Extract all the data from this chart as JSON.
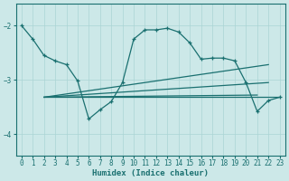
{
  "bg_color": "#cce8e8",
  "grid_color": "#aad4d4",
  "line_color": "#1a7070",
  "xlabel": "Humidex (Indice chaleur)",
  "xlim": [
    -0.5,
    23.5
  ],
  "ylim": [
    -4.4,
    -1.6
  ],
  "yticks": [
    -4,
    -3,
    -2
  ],
  "xticks": [
    0,
    1,
    2,
    3,
    4,
    5,
    6,
    7,
    8,
    9,
    10,
    11,
    12,
    13,
    14,
    15,
    16,
    17,
    18,
    19,
    20,
    21,
    22,
    23
  ],
  "main_x": [
    0,
    1,
    2,
    3,
    4,
    5,
    6,
    7,
    8,
    9,
    10,
    11,
    12,
    13,
    14,
    15,
    16,
    17,
    18,
    19,
    20,
    21,
    22,
    23
  ],
  "main_y": [
    -2.0,
    -2.25,
    -2.55,
    -2.65,
    -2.72,
    -3.02,
    -3.72,
    -3.55,
    -3.4,
    -3.05,
    -2.25,
    -2.08,
    -2.08,
    -2.05,
    -2.12,
    -2.32,
    -2.62,
    -2.6,
    -2.6,
    -2.65,
    -3.05,
    -3.58,
    -3.38,
    -3.32
  ],
  "line1_x": [
    2,
    23
  ],
  "line1_y": [
    -3.32,
    -3.32
  ],
  "line2_x": [
    2,
    22
  ],
  "line2_y": [
    -3.32,
    -2.72
  ],
  "line3_x": [
    2,
    22
  ],
  "line3_y": [
    -3.32,
    -3.05
  ],
  "line4_x": [
    2,
    21
  ],
  "line4_y": [
    -3.32,
    -3.28
  ]
}
